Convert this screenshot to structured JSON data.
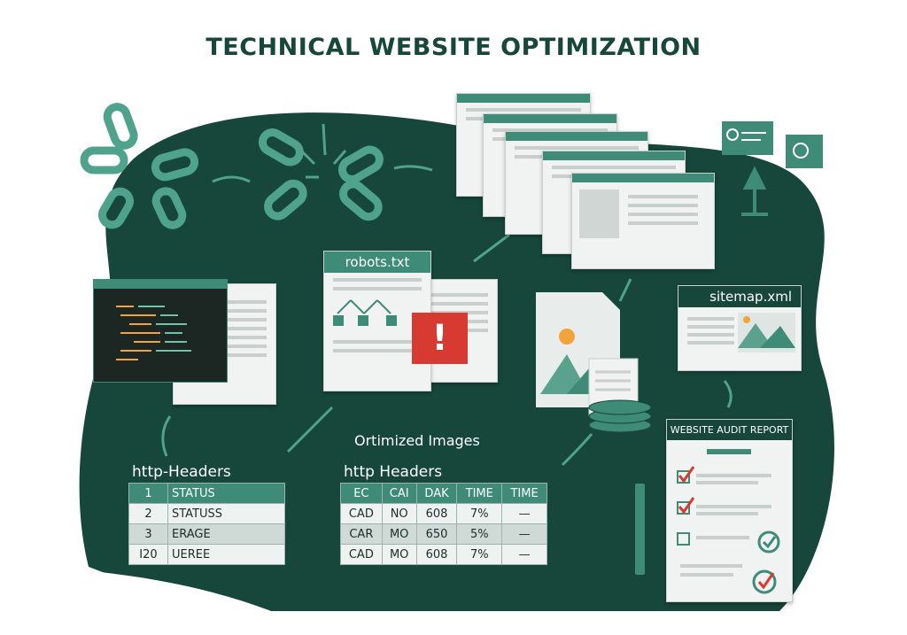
{
  "title": "TECHNICAL WEBSITE OPTIMIZATION",
  "colors": {
    "dark_green": "#17463a",
    "teal": "#3e8b78",
    "alert_red": "#d63a30",
    "accent_orange": "#f2a33a"
  },
  "robots": {
    "label": "robots.txt"
  },
  "sitemap": {
    "label": "sitemap.xml"
  },
  "optimized_images": {
    "label": "Ortimized Images"
  },
  "audit": {
    "label": "WEBSITE AUDIT REPORT"
  },
  "table_left": {
    "title": "http-Headers",
    "rows": [
      [
        "1",
        "STATUS"
      ],
      [
        "2",
        "STATUSS"
      ],
      [
        "3",
        "ERAGE"
      ],
      [
        "I20",
        "UEREE"
      ]
    ]
  },
  "table_right": {
    "title": "http Headers",
    "headers": [
      "EC",
      "CAI",
      "DAK",
      "TIME",
      "TIME"
    ],
    "rows": [
      [
        "CAD",
        "NO",
        "608",
        "7%",
        "—"
      ],
      [
        "CAR",
        "MO",
        "650",
        "5%",
        "—"
      ],
      [
        "CAD",
        "MO",
        "608",
        "7%",
        "—"
      ]
    ]
  }
}
